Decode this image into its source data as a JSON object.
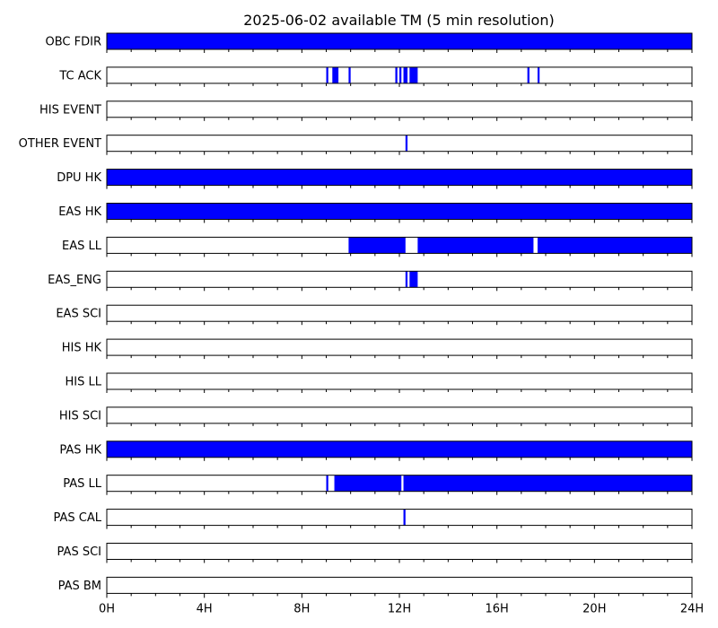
{
  "chart_data": {
    "type": "timeline",
    "title": "2025-06-02 available TM (5 min resolution)",
    "x_unit": "hour",
    "xlim": [
      0,
      24
    ],
    "x_ticks": [
      0,
      4,
      8,
      12,
      16,
      20,
      24
    ],
    "x_tick_labels": [
      "0H",
      "4H",
      "8H",
      "12H",
      "16H",
      "20H",
      "24H"
    ],
    "fill_color": "#0000ff",
    "edge_color": "#000000",
    "series": [
      {
        "name": "OBC FDIR",
        "intervals": [
          [
            0,
            24
          ]
        ]
      },
      {
        "name": "TC ACK",
        "intervals": [
          [
            9.0,
            9.083
          ],
          [
            9.25,
            9.5
          ],
          [
            9.917,
            10.0
          ],
          [
            11.833,
            11.917
          ],
          [
            12.0,
            12.083
          ],
          [
            12.167,
            12.333
          ],
          [
            12.417,
            12.75
          ],
          [
            17.25,
            17.333
          ],
          [
            17.667,
            17.75
          ]
        ]
      },
      {
        "name": "HIS EVENT",
        "intervals": []
      },
      {
        "name": "OTHER EVENT",
        "intervals": [
          [
            12.25,
            12.333
          ]
        ]
      },
      {
        "name": "DPU HK",
        "intervals": [
          [
            0,
            24
          ]
        ]
      },
      {
        "name": "EAS HK",
        "intervals": [
          [
            0,
            24
          ]
        ]
      },
      {
        "name": "EAS LL",
        "intervals": [
          [
            9.917,
            12.25
          ],
          [
            12.75,
            17.5
          ],
          [
            17.667,
            24
          ]
        ]
      },
      {
        "name": "EAS_ENG",
        "intervals": [
          [
            12.25,
            12.333
          ],
          [
            12.417,
            12.75
          ]
        ]
      },
      {
        "name": "EAS SCI",
        "intervals": []
      },
      {
        "name": "HIS HK",
        "intervals": []
      },
      {
        "name": "HIS LL",
        "intervals": []
      },
      {
        "name": "HIS SCI",
        "intervals": []
      },
      {
        "name": "PAS HK",
        "intervals": [
          [
            0,
            24
          ]
        ]
      },
      {
        "name": "PAS LL",
        "intervals": [
          [
            9.0,
            9.083
          ],
          [
            9.333,
            12.083
          ],
          [
            12.167,
            24
          ]
        ]
      },
      {
        "name": "PAS CAL",
        "intervals": [
          [
            12.167,
            12.25
          ]
        ]
      },
      {
        "name": "PAS SCI",
        "intervals": []
      },
      {
        "name": "PAS BM",
        "intervals": []
      }
    ]
  }
}
